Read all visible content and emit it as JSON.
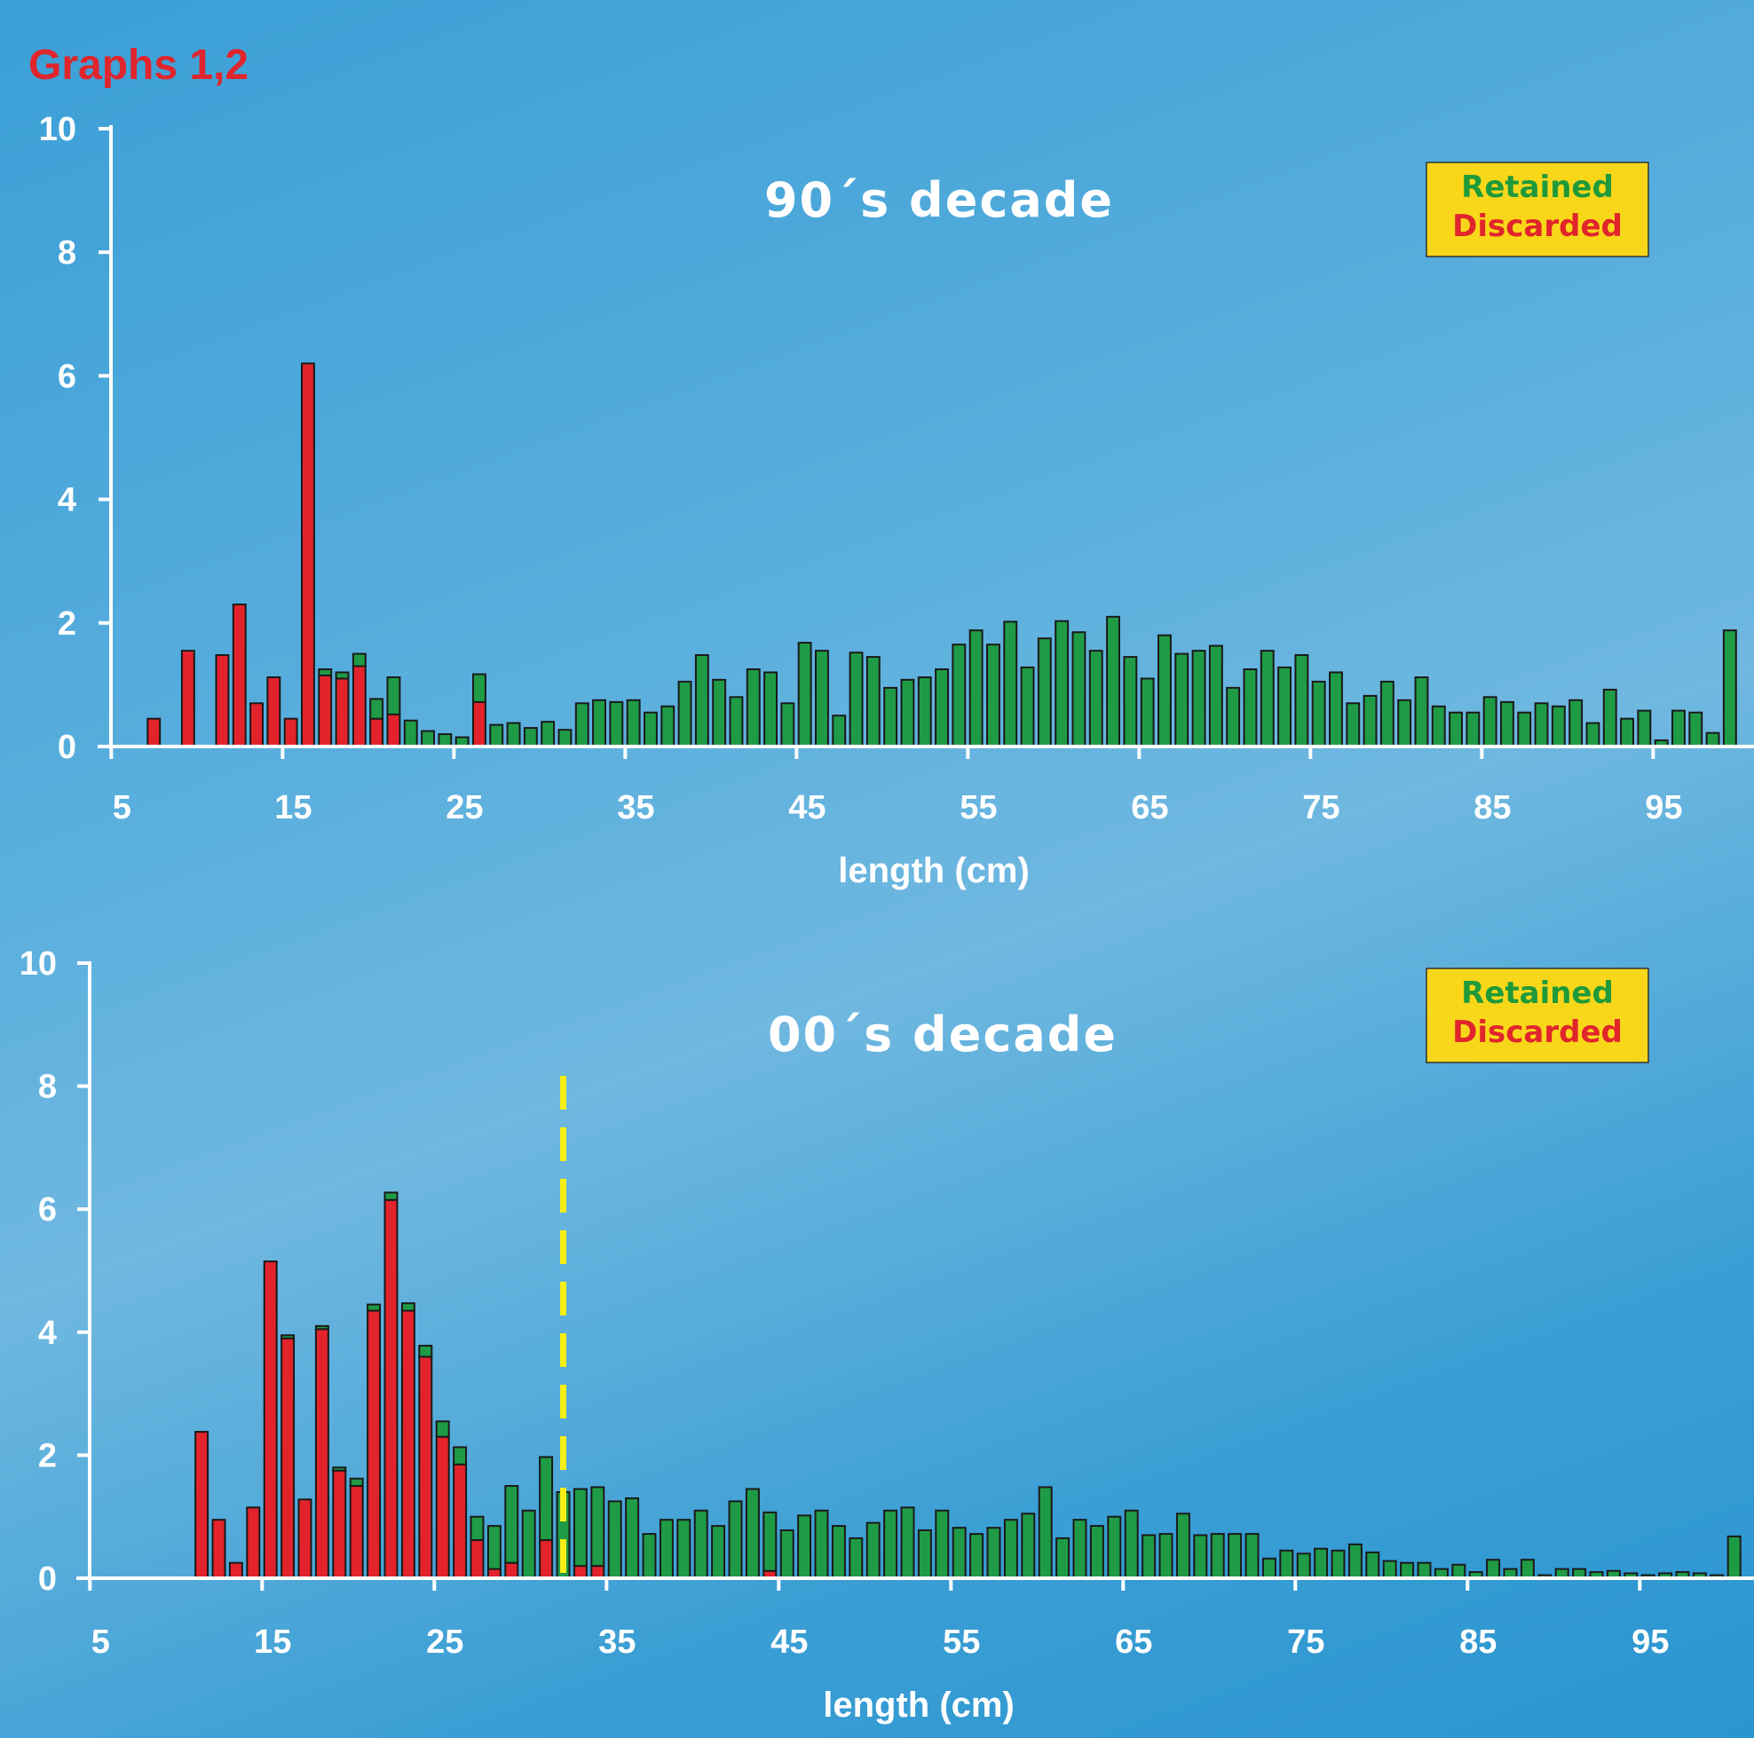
{
  "page_title": "Graphs 1,2",
  "colors": {
    "retained": "#1f9b46",
    "discarded": "#e3232b",
    "legend_bg": "#f8d71a",
    "marker": "#f6ee15"
  },
  "chart_data": [
    {
      "type": "bar",
      "stacked": true,
      "title": "90´s decade",
      "xlabel": "length (cm)",
      "ylabel": "",
      "ylim": [
        0,
        10
      ],
      "xlim": [
        5,
        101
      ],
      "x_ticks": [
        "5",
        "15",
        "25",
        "35",
        "45",
        "55",
        "65",
        "75",
        "85",
        "95"
      ],
      "y_ticks": [
        "0",
        "2",
        "4",
        "6",
        "8",
        "10"
      ],
      "legend": [
        "Retained",
        "Discarded"
      ],
      "legend_position": "top-right",
      "x": [
        6,
        7,
        8,
        9,
        10,
        11,
        12,
        13,
        14,
        15,
        16,
        17,
        18,
        19,
        20,
        21,
        22,
        23,
        24,
        25,
        26,
        27,
        28,
        29,
        30,
        31,
        32,
        33,
        34,
        35,
        36,
        37,
        38,
        39,
        40,
        41,
        42,
        43,
        44,
        45,
        46,
        47,
        48,
        49,
        50,
        51,
        52,
        53,
        54,
        55,
        56,
        57,
        58,
        59,
        60,
        61,
        62,
        63,
        64,
        65,
        66,
        67,
        68,
        69,
        70,
        71,
        72,
        73,
        74,
        75,
        76,
        77,
        78,
        79,
        80,
        81,
        82,
        83,
        84,
        85,
        86,
        87,
        88,
        89,
        90,
        91,
        92,
        93,
        94,
        95,
        96,
        97,
        98,
        99,
        100,
        101
      ],
      "series": [
        {
          "name": "Discarded",
          "values": [
            0,
            0,
            0.45,
            0,
            1.55,
            0,
            1.48,
            2.3,
            0.7,
            1.12,
            0.45,
            6.2,
            1.15,
            1.1,
            1.3,
            0.45,
            0.52,
            0,
            0,
            0,
            0,
            0.72,
            0,
            0,
            0,
            0,
            0,
            0,
            0,
            0,
            0,
            0,
            0,
            0,
            0,
            0,
            0,
            0,
            0,
            0,
            0,
            0,
            0,
            0,
            0,
            0,
            0,
            0,
            0,
            0,
            0,
            0,
            0,
            0,
            0,
            0,
            0,
            0,
            0,
            0,
            0,
            0,
            0,
            0,
            0,
            0,
            0,
            0,
            0,
            0,
            0,
            0,
            0,
            0,
            0,
            0,
            0,
            0,
            0,
            0,
            0,
            0,
            0,
            0,
            0,
            0,
            0,
            0,
            0,
            0,
            0,
            0,
            0,
            0,
            0,
            0
          ]
        },
        {
          "name": "Retained",
          "values": [
            0,
            0,
            0,
            0,
            0,
            0,
            0,
            0,
            0,
            0,
            0,
            0,
            0.1,
            0.1,
            0.2,
            0.32,
            0.6,
            0.42,
            0.25,
            0.2,
            0.15,
            0.45,
            0.35,
            0.38,
            0.3,
            0.4,
            0.27,
            0.7,
            0.75,
            0.72,
            0.75,
            0.55,
            0.65,
            1.05,
            1.48,
            1.08,
            0.8,
            1.25,
            1.2,
            0.7,
            1.68,
            1.55,
            0.5,
            1.52,
            1.45,
            0.95,
            1.08,
            1.12,
            1.25,
            1.65,
            1.88,
            1.65,
            2.02,
            1.28,
            1.75,
            2.03,
            1.85,
            1.55,
            2.1,
            1.45,
            1.1,
            1.8,
            1.5,
            1.55,
            1.63,
            0.95,
            1.25,
            1.55,
            1.28,
            1.48,
            1.05,
            1.2,
            0.7,
            0.82,
            1.05,
            0.75,
            1.12,
            0.65,
            0.55,
            0.55,
            0.8,
            0.72,
            0.55,
            0.7,
            0.65,
            0.75,
            0.38,
            0.92,
            0.45,
            0.58,
            0.1,
            0.58,
            0.55,
            0.22,
            1.88,
            0
          ]
        }
      ]
    },
    {
      "type": "bar",
      "stacked": true,
      "title": "00´s decade",
      "xlabel": "length (cm)",
      "ylabel": "",
      "ylim": [
        0,
        10
      ],
      "xlim": [
        5,
        101
      ],
      "x_ticks": [
        "5",
        "15",
        "25",
        "35",
        "45",
        "55",
        "65",
        "75",
        "85",
        "95"
      ],
      "y_ticks": [
        "0",
        "2",
        "4",
        "6",
        "8",
        "10"
      ],
      "legend": [
        "Retained",
        "Discarded"
      ],
      "legend_position": "top-right",
      "reference_line": {
        "x": 33,
        "style": "dashed"
      },
      "x": [
        6,
        7,
        8,
        9,
        10,
        11,
        12,
        13,
        14,
        15,
        16,
        17,
        18,
        19,
        20,
        21,
        22,
        23,
        24,
        25,
        26,
        27,
        28,
        29,
        30,
        31,
        32,
        33,
        34,
        35,
        36,
        37,
        38,
        39,
        40,
        41,
        42,
        43,
        44,
        45,
        46,
        47,
        48,
        49,
        50,
        51,
        52,
        53,
        54,
        55,
        56,
        57,
        58,
        59,
        60,
        61,
        62,
        63,
        64,
        65,
        66,
        67,
        68,
        69,
        70,
        71,
        72,
        73,
        74,
        75,
        76,
        77,
        78,
        79,
        80,
        81,
        82,
        83,
        84,
        85,
        86,
        87,
        88,
        89,
        90,
        91,
        92,
        93,
        94,
        95,
        96,
        97,
        98,
        99,
        100,
        101
      ],
      "series": [
        {
          "name": "Discarded",
          "values": [
            0,
            0,
            0,
            0,
            0,
            0,
            2.38,
            0.95,
            0.25,
            1.15,
            5.15,
            3.9,
            1.28,
            4.05,
            1.75,
            1.5,
            4.35,
            6.15,
            4.35,
            3.6,
            2.3,
            1.85,
            0.62,
            0.15,
            0.25,
            0,
            0.62,
            0,
            0.2,
            0.2,
            0,
            0,
            0,
            0,
            0,
            0,
            0,
            0,
            0,
            0.12,
            0,
            0,
            0,
            0,
            0,
            0,
            0,
            0,
            0,
            0,
            0,
            0,
            0,
            0,
            0,
            0,
            0,
            0,
            0,
            0,
            0,
            0,
            0,
            0,
            0,
            0,
            0,
            0,
            0,
            0,
            0,
            0,
            0,
            0,
            0,
            0,
            0,
            0,
            0,
            0,
            0,
            0,
            0,
            0,
            0,
            0,
            0,
            0,
            0,
            0,
            0,
            0,
            0,
            0,
            0,
            0
          ]
        },
        {
          "name": "Retained",
          "values": [
            0,
            0,
            0,
            0,
            0,
            0,
            0,
            0,
            0,
            0,
            0,
            0.05,
            0,
            0.05,
            0.05,
            0.12,
            0.1,
            0.12,
            0.12,
            0.18,
            0.25,
            0.28,
            0.38,
            0.7,
            1.25,
            1.1,
            1.35,
            1.4,
            1.25,
            1.28,
            1.25,
            1.3,
            0.72,
            0.95,
            0.95,
            1.1,
            0.85,
            1.25,
            1.45,
            0.95,
            0.78,
            1.02,
            1.1,
            0.85,
            0.65,
            0.9,
            1.1,
            1.15,
            0.78,
            1.1,
            0.82,
            0.72,
            0.82,
            0.95,
            1.05,
            1.48,
            0.65,
            0.95,
            0.85,
            1.0,
            1.1,
            0.7,
            0.72,
            1.05,
            0.7,
            0.72,
            0.72,
            0.72,
            0.32,
            0.45,
            0.4,
            0.48,
            0.45,
            0.55,
            0.42,
            0.28,
            0.25,
            0.25,
            0.15,
            0.22,
            0.1,
            0.3,
            0.15,
            0.3,
            0.05,
            0.15,
            0.15,
            0.1,
            0.12,
            0.08,
            0.05,
            0.08,
            0.1,
            0.08,
            0.05,
            0.68
          ]
        }
      ]
    }
  ]
}
